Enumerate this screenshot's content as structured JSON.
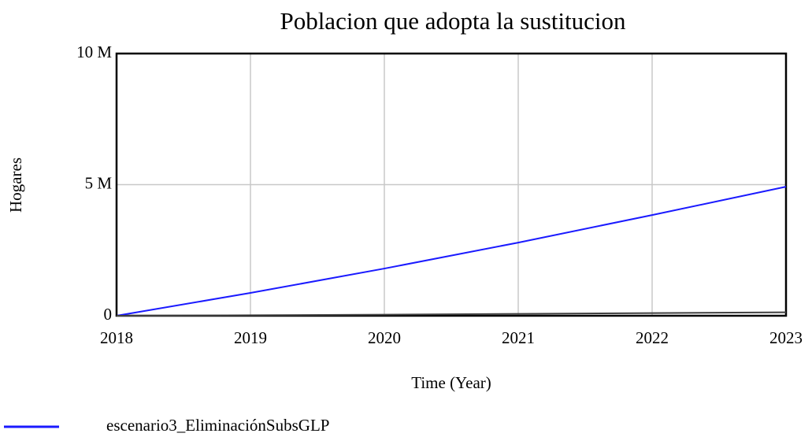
{
  "chart_data": {
    "type": "line",
    "title": "Poblacion que adopta la sustitucion",
    "x_label": "Time (Year)",
    "y_label": "Hogares",
    "x": [
      2018,
      2019,
      2020,
      2021,
      2022,
      2023
    ],
    "xlim": [
      2018,
      2023
    ],
    "xticks": [
      2018,
      2019,
      2020,
      2021,
      2022,
      2023
    ],
    "ylim": [
      0,
      10000000
    ],
    "yticks": [
      0,
      {
        "value": 5000000,
        "label": "5 M"
      },
      {
        "value": 10000000,
        "label": "10 M"
      }
    ],
    "grid": true,
    "series": [
      {
        "name": "escenario3_EliminaciónSubsGLP",
        "color": "#1a1aff",
        "values": [
          0,
          870000,
          1800000,
          2790000,
          3840000,
          4920000
        ]
      },
      {
        "color": "#404040",
        "values": [
          0,
          20000,
          40000,
          70000,
          100000,
          130000
        ]
      }
    ]
  }
}
